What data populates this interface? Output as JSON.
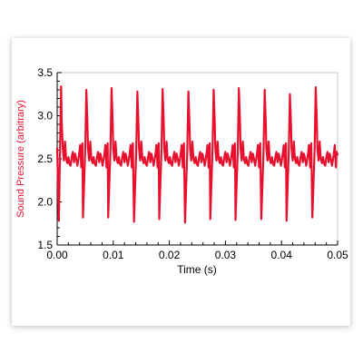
{
  "chart_data": {
    "type": "line",
    "title": "",
    "xlabel": "Time (s)",
    "ylabel": "Sound Pressure (arbitrary)",
    "xlim": [
      0,
      0.05
    ],
    "ylim": [
      1.5,
      3.5
    ],
    "x_ticks": [
      "0.00",
      "0.01",
      "0.02",
      "0.03",
      "0.04",
      "0.05"
    ],
    "y_ticks": [
      "1.5",
      "2.0",
      "2.5",
      "3.0",
      "3.5"
    ],
    "grid": false,
    "legend": "none",
    "period_s": 0.00455,
    "series": [
      {
        "color": "#e8112d",
        "x": [
          0.0,
          0.0003,
          0.0005,
          0.0007,
          0.0008,
          0.001,
          0.0012,
          0.0014,
          0.0016,
          0.0018,
          0.002,
          0.0022,
          0.0024,
          0.0026,
          0.0028,
          0.003,
          0.0032,
          0.0034,
          0.0036,
          0.0038,
          0.004,
          0.0041,
          0.0043,
          0.0044,
          0.0045,
          0.0046,
          0.005,
          0.0052,
          0.0054,
          0.0055,
          0.0057,
          0.0059,
          0.0061,
          0.0063,
          0.0065,
          0.0067,
          0.0069,
          0.0071,
          0.0073,
          0.0075,
          0.0077,
          0.0079,
          0.0081,
          0.0083,
          0.0085,
          0.0086,
          0.0088,
          0.0089,
          0.009,
          0.0091,
          0.0095,
          0.0097,
          0.0099,
          0.01,
          0.0102,
          0.0104,
          0.0106,
          0.0108,
          0.011,
          0.0112,
          0.0114,
          0.0116,
          0.0118,
          0.012,
          0.0122,
          0.0124,
          0.0126,
          0.0128,
          0.013,
          0.0131,
          0.0133,
          0.0134,
          0.0135,
          0.0137,
          0.0141,
          0.0143,
          0.0145,
          0.0146,
          0.0148,
          0.015,
          0.0152,
          0.0154,
          0.0156,
          0.0158,
          0.016,
          0.0162,
          0.0164,
          0.0166,
          0.0168,
          0.017,
          0.0172,
          0.0174,
          0.0176,
          0.0177,
          0.0179,
          0.018,
          0.0181,
          0.0182,
          0.0186,
          0.0188,
          0.019,
          0.0191,
          0.0193,
          0.0195,
          0.0197,
          0.0199,
          0.0201,
          0.0203,
          0.0205,
          0.0207,
          0.0209,
          0.0211,
          0.0213,
          0.0215,
          0.0217,
          0.0219,
          0.0221,
          0.0222,
          0.0224,
          0.0225,
          0.0226,
          0.0228,
          0.0232,
          0.0234,
          0.0236,
          0.0237,
          0.0239,
          0.0241,
          0.0243,
          0.0245,
          0.0247,
          0.0249,
          0.0251,
          0.0253,
          0.0255,
          0.0257,
          0.0259,
          0.0261,
          0.0263,
          0.0265,
          0.0267,
          0.0268,
          0.027,
          0.0271,
          0.0272,
          0.0273,
          0.0277,
          0.0279,
          0.0281,
          0.0282,
          0.0284,
          0.0286,
          0.0288,
          0.029,
          0.0292,
          0.0294,
          0.0296,
          0.0298,
          0.03,
          0.0302,
          0.0304,
          0.0306,
          0.0308,
          0.031,
          0.0312,
          0.0313,
          0.0315,
          0.0316,
          0.0317,
          0.0318,
          0.0322,
          0.0324,
          0.0326,
          0.0327,
          0.0329,
          0.0331,
          0.0333,
          0.0335,
          0.0337,
          0.0339,
          0.0341,
          0.0343,
          0.0345,
          0.0347,
          0.0349,
          0.0351,
          0.0353,
          0.0355,
          0.0357,
          0.0358,
          0.036,
          0.0361,
          0.0362,
          0.0364,
          0.0368,
          0.037,
          0.0372,
          0.0373,
          0.0375,
          0.0377,
          0.0379,
          0.0381,
          0.0383,
          0.0385,
          0.0387,
          0.0389,
          0.0391,
          0.0393,
          0.0395,
          0.0397,
          0.0399,
          0.0401,
          0.0403,
          0.0404,
          0.0406,
          0.0407,
          0.0408,
          0.0409,
          0.0413,
          0.0415,
          0.0417,
          0.0418,
          0.042,
          0.0422,
          0.0424,
          0.0426,
          0.0428,
          0.043,
          0.0432,
          0.0434,
          0.0436,
          0.0438,
          0.044,
          0.0442,
          0.0444,
          0.0446,
          0.0448,
          0.0449,
          0.0451,
          0.0452,
          0.0453,
          0.0455,
          0.0459,
          0.0461,
          0.0463,
          0.0464,
          0.0466,
          0.0468,
          0.047,
          0.0472,
          0.0474,
          0.0476,
          0.0478,
          0.048,
          0.0482,
          0.0484,
          0.0486,
          0.0488,
          0.049,
          0.0492,
          0.0494,
          0.0495,
          0.0497,
          0.0498,
          0.05
        ],
        "y": [
          2.62,
          1.78,
          2.55,
          3.34,
          2.95,
          2.62,
          2.48,
          2.7,
          2.5,
          2.45,
          2.52,
          2.44,
          2.42,
          2.52,
          2.58,
          2.46,
          2.56,
          2.5,
          2.42,
          2.5,
          2.6,
          2.66,
          2.4,
          2.58,
          2.68,
          1.82,
          2.6,
          3.3,
          2.9,
          2.62,
          2.48,
          2.7,
          2.5,
          2.45,
          2.52,
          2.44,
          2.42,
          2.52,
          2.58,
          2.46,
          2.56,
          2.5,
          2.42,
          2.5,
          2.6,
          2.66,
          2.4,
          2.58,
          2.68,
          1.82,
          2.6,
          3.32,
          2.92,
          2.62,
          2.48,
          2.7,
          2.5,
          2.45,
          2.52,
          2.44,
          2.42,
          2.52,
          2.58,
          2.46,
          2.56,
          2.5,
          2.42,
          2.5,
          2.6,
          2.66,
          2.4,
          2.58,
          2.68,
          1.77,
          2.6,
          3.28,
          2.9,
          2.62,
          2.48,
          2.7,
          2.5,
          2.45,
          2.52,
          2.44,
          2.42,
          2.52,
          2.58,
          2.46,
          2.56,
          2.5,
          2.42,
          2.5,
          2.6,
          2.66,
          2.4,
          2.58,
          2.68,
          1.8,
          2.6,
          3.31,
          2.92,
          2.62,
          2.48,
          2.7,
          2.5,
          2.45,
          2.52,
          2.44,
          2.42,
          2.52,
          2.58,
          2.46,
          2.56,
          2.5,
          2.42,
          2.5,
          2.6,
          2.66,
          2.4,
          2.58,
          2.68,
          1.76,
          2.6,
          3.28,
          2.9,
          2.62,
          2.48,
          2.7,
          2.5,
          2.45,
          2.52,
          2.44,
          2.42,
          2.52,
          2.58,
          2.46,
          2.56,
          2.5,
          2.42,
          2.5,
          2.6,
          2.66,
          2.4,
          2.58,
          2.68,
          1.8,
          2.6,
          3.3,
          2.91,
          2.62,
          2.48,
          2.7,
          2.5,
          2.45,
          2.52,
          2.44,
          2.42,
          2.52,
          2.58,
          2.46,
          2.56,
          2.5,
          2.42,
          2.5,
          2.6,
          2.66,
          2.4,
          2.58,
          2.68,
          1.79,
          2.6,
          3.32,
          2.92,
          2.62,
          2.48,
          2.7,
          2.5,
          2.45,
          2.52,
          2.44,
          2.42,
          2.52,
          2.58,
          2.46,
          2.56,
          2.5,
          2.42,
          2.5,
          2.6,
          2.66,
          2.4,
          2.58,
          2.68,
          1.8,
          2.6,
          3.3,
          2.91,
          2.62,
          2.48,
          2.7,
          2.5,
          2.45,
          2.52,
          2.44,
          2.42,
          2.52,
          2.58,
          2.46,
          2.56,
          2.5,
          2.42,
          2.5,
          2.6,
          2.66,
          2.4,
          2.58,
          2.68,
          1.78,
          2.6,
          3.25,
          2.88,
          2.62,
          2.48,
          2.7,
          2.5,
          2.45,
          2.52,
          2.44,
          2.42,
          2.52,
          2.58,
          2.46,
          2.56,
          2.5,
          2.42,
          2.5,
          2.6,
          2.66,
          2.4,
          2.58,
          2.68,
          1.82,
          2.6,
          3.33,
          2.93,
          2.62,
          2.48,
          2.7,
          2.5,
          2.45,
          2.52,
          2.44,
          2.42,
          2.52,
          2.58,
          2.46,
          2.56,
          2.5,
          2.42,
          2.5,
          2.6,
          2.66,
          2.4,
          2.58,
          2.55
        ]
      }
    ]
  }
}
